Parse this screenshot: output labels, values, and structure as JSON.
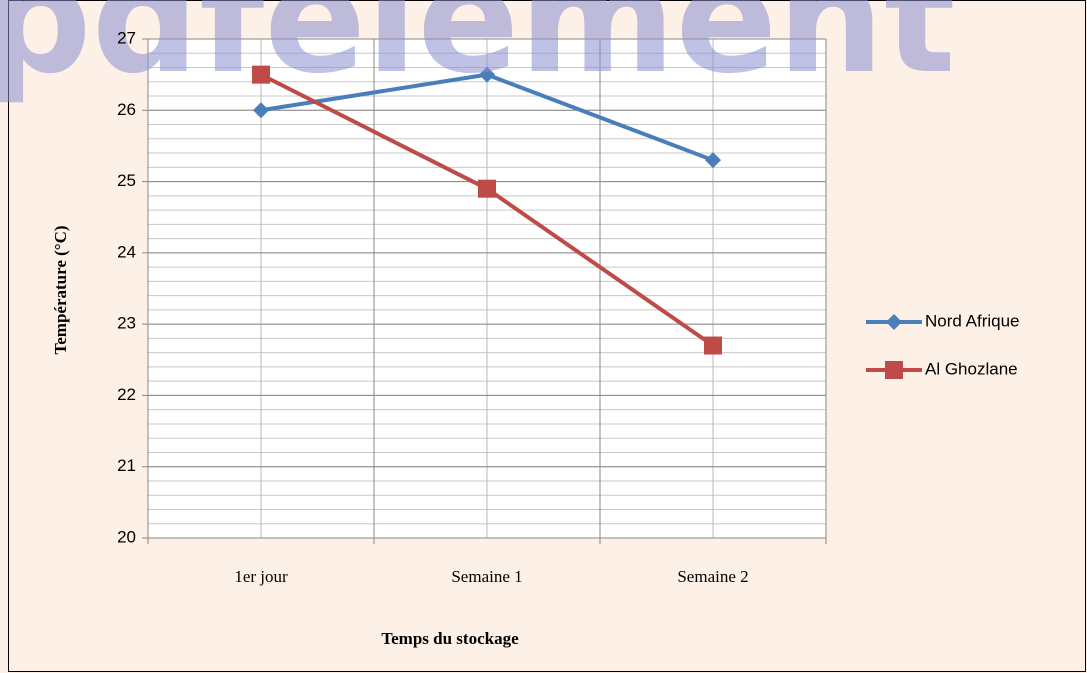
{
  "chart_data": {
    "type": "line",
    "watermark": "pdfelement",
    "xlabel": "Temps du stockage",
    "ylabel": "Température  (°C)",
    "categories": [
      "1er jour",
      "Semaine 1",
      "Semaine 2"
    ],
    "series": [
      {
        "name": "Nord Afrique",
        "color": "#4a7ebb",
        "marker": "diamond",
        "values": [
          26,
          26.5,
          25.3
        ]
      },
      {
        "name": "Al Ghozlane",
        "color": "#be4b48",
        "marker": "square",
        "values": [
          26.5,
          24.9,
          22.7
        ]
      }
    ],
    "ylim": [
      20,
      27
    ],
    "yticks": [
      20,
      21,
      22,
      23,
      24,
      25,
      26,
      27
    ],
    "grid": true,
    "minor_grid_step": 0.2,
    "legend": "right"
  }
}
